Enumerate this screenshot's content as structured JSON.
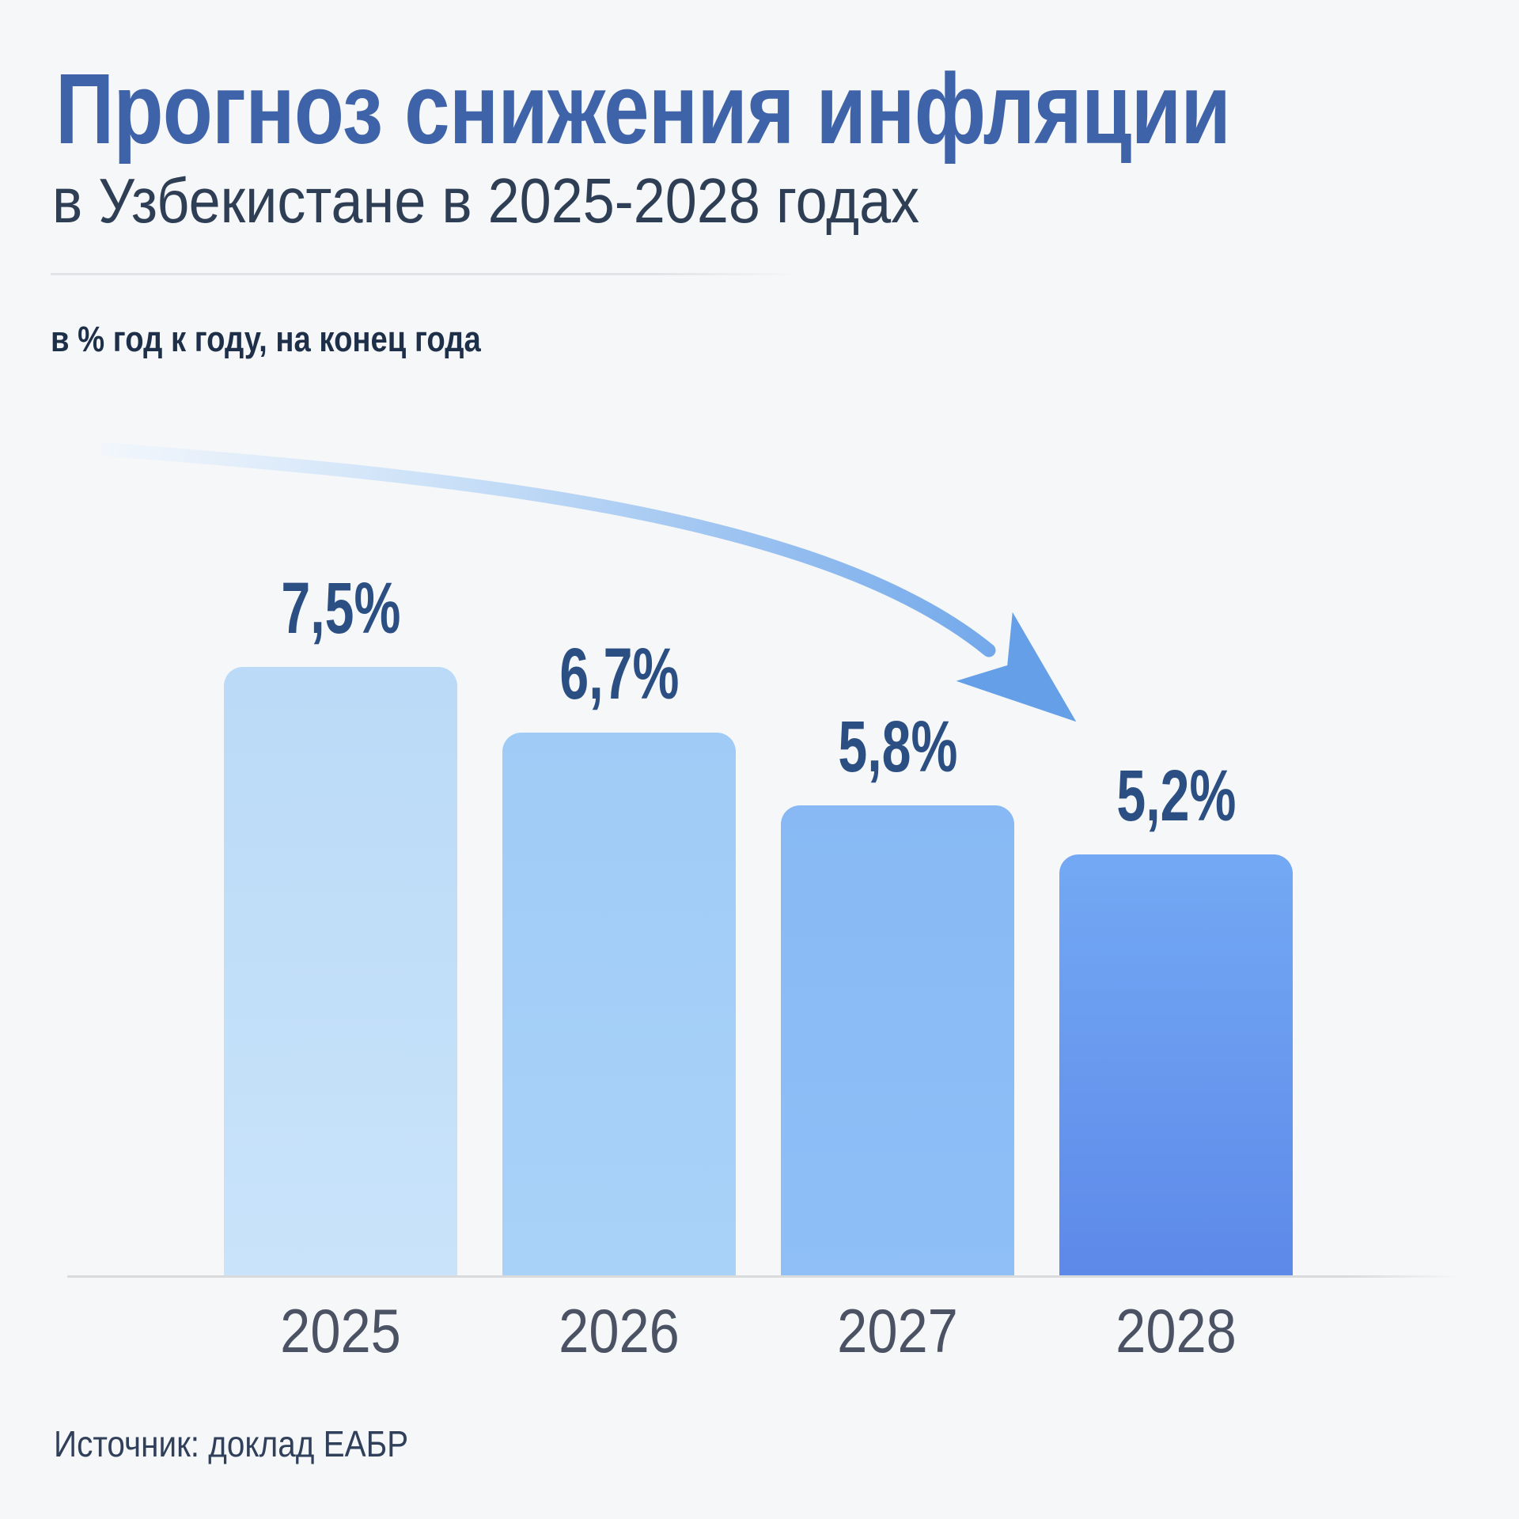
{
  "header": {
    "title": "Прогноз снижения инфляции",
    "subtitle": "в Узбекистане в 2025-2028 годах",
    "unit_label": "в % год к году, на конец года"
  },
  "footer": {
    "source": "Источник: доклад ЕАБР"
  },
  "chart_data": {
    "type": "bar",
    "title": "Прогноз снижения инфляции в Узбекистане в 2025-2028 годах",
    "ylabel": "в % год к году, на конец года",
    "xlabel": "",
    "categories": [
      "2025",
      "2026",
      "2027",
      "2028"
    ],
    "values": [
      7.5,
      6.7,
      5.8,
      5.2
    ],
    "value_labels": [
      "7,5%",
      "6,7%",
      "5,8%",
      "5,2%"
    ],
    "ylim": [
      0,
      7.5
    ],
    "grid": false,
    "legend": false,
    "annotations": [
      "downward-trend-arrow"
    ],
    "source": "доклад ЕАБР",
    "bar_colors": [
      {
        "top": "#badaf7",
        "bottom": "#c9e3fa"
      },
      {
        "top": "#9fcbf6",
        "bottom": "#a9d2f8"
      },
      {
        "top": "#88b9f4",
        "bottom": "#8fbff6"
      },
      {
        "top": "#73a9f4",
        "bottom": "#5d89e9"
      }
    ]
  },
  "colors": {
    "background": "#f6f7f8",
    "title": "#3f63a8",
    "subtitle": "#2e3e55",
    "unit_label": "#1e3049",
    "value_label": "#2b4f82",
    "year_label": "#4a5264",
    "axis_line": "#d8dadc",
    "divider": "#e1e3e6",
    "arrow_start": "#f1f6fc",
    "arrow_end": "#6fa6ea"
  }
}
